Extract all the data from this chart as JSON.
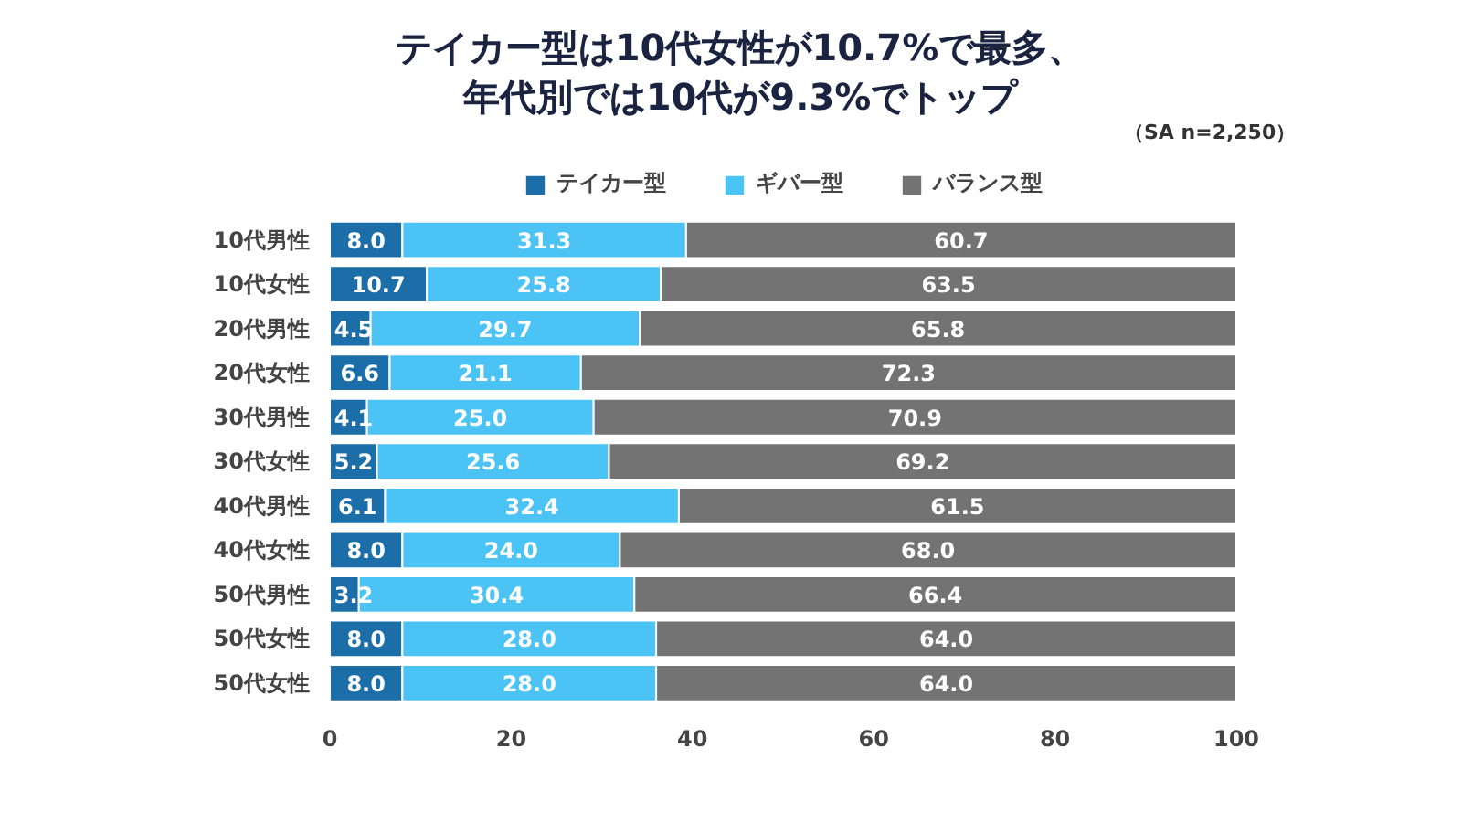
{
  "chart_data": {
    "type": "bar",
    "orientation": "horizontal",
    "stacked": true,
    "title": "テイカー型は10代女性が10.7%で最多、年代別では10代が9.3%でトップ",
    "annotations": [
      "（SA n=2,250）"
    ],
    "categories": [
      "10代男性",
      "10代女性",
      "20代男性",
      "20代女性",
      "30代男性",
      "30代女性",
      "40代男性",
      "40代女性",
      "50代男性",
      "50代女性",
      "50代女性"
    ],
    "series": [
      {
        "name": "テイカー型",
        "color": "#1b6ea8",
        "values": [
          8.0,
          10.7,
          4.5,
          6.6,
          4.1,
          5.2,
          6.1,
          8.0,
          3.2,
          8.0,
          8.0
        ],
        "value_labels": [
          "8.0",
          "10.7",
          "4.5",
          "6.6",
          "4.1",
          "5.2",
          "6.1",
          "8.0",
          "3.2",
          "8.0",
          "8.0"
        ]
      },
      {
        "name": "ギバー型",
        "color": "#4cc3f5",
        "values": [
          31.3,
          25.8,
          29.7,
          21.1,
          25.0,
          25.6,
          32.4,
          24.0,
          30.4,
          28.0,
          28.0
        ],
        "value_labels": [
          "31.3",
          "25.8",
          "29.7",
          "21.1",
          "25.0",
          "25.6",
          "32.4",
          "24.0",
          "30.4",
          "28.0",
          "28.0"
        ]
      },
      {
        "name": "バランス型",
        "color": "#737373",
        "values": [
          60.7,
          63.5,
          65.8,
          72.3,
          70.9,
          69.2,
          61.5,
          68.0,
          66.4,
          64.0,
          64.0
        ],
        "value_labels": [
          "60.7",
          "63.5",
          "65.8",
          "72.3",
          "70.9",
          "69.2",
          "61.5",
          "68.0",
          "66.4",
          "64.0",
          "64.0"
        ]
      }
    ],
    "xlim": [
      0,
      100
    ],
    "xticks": [
      0,
      20,
      40,
      60,
      80,
      100
    ],
    "grid": false,
    "legend": "top"
  }
}
